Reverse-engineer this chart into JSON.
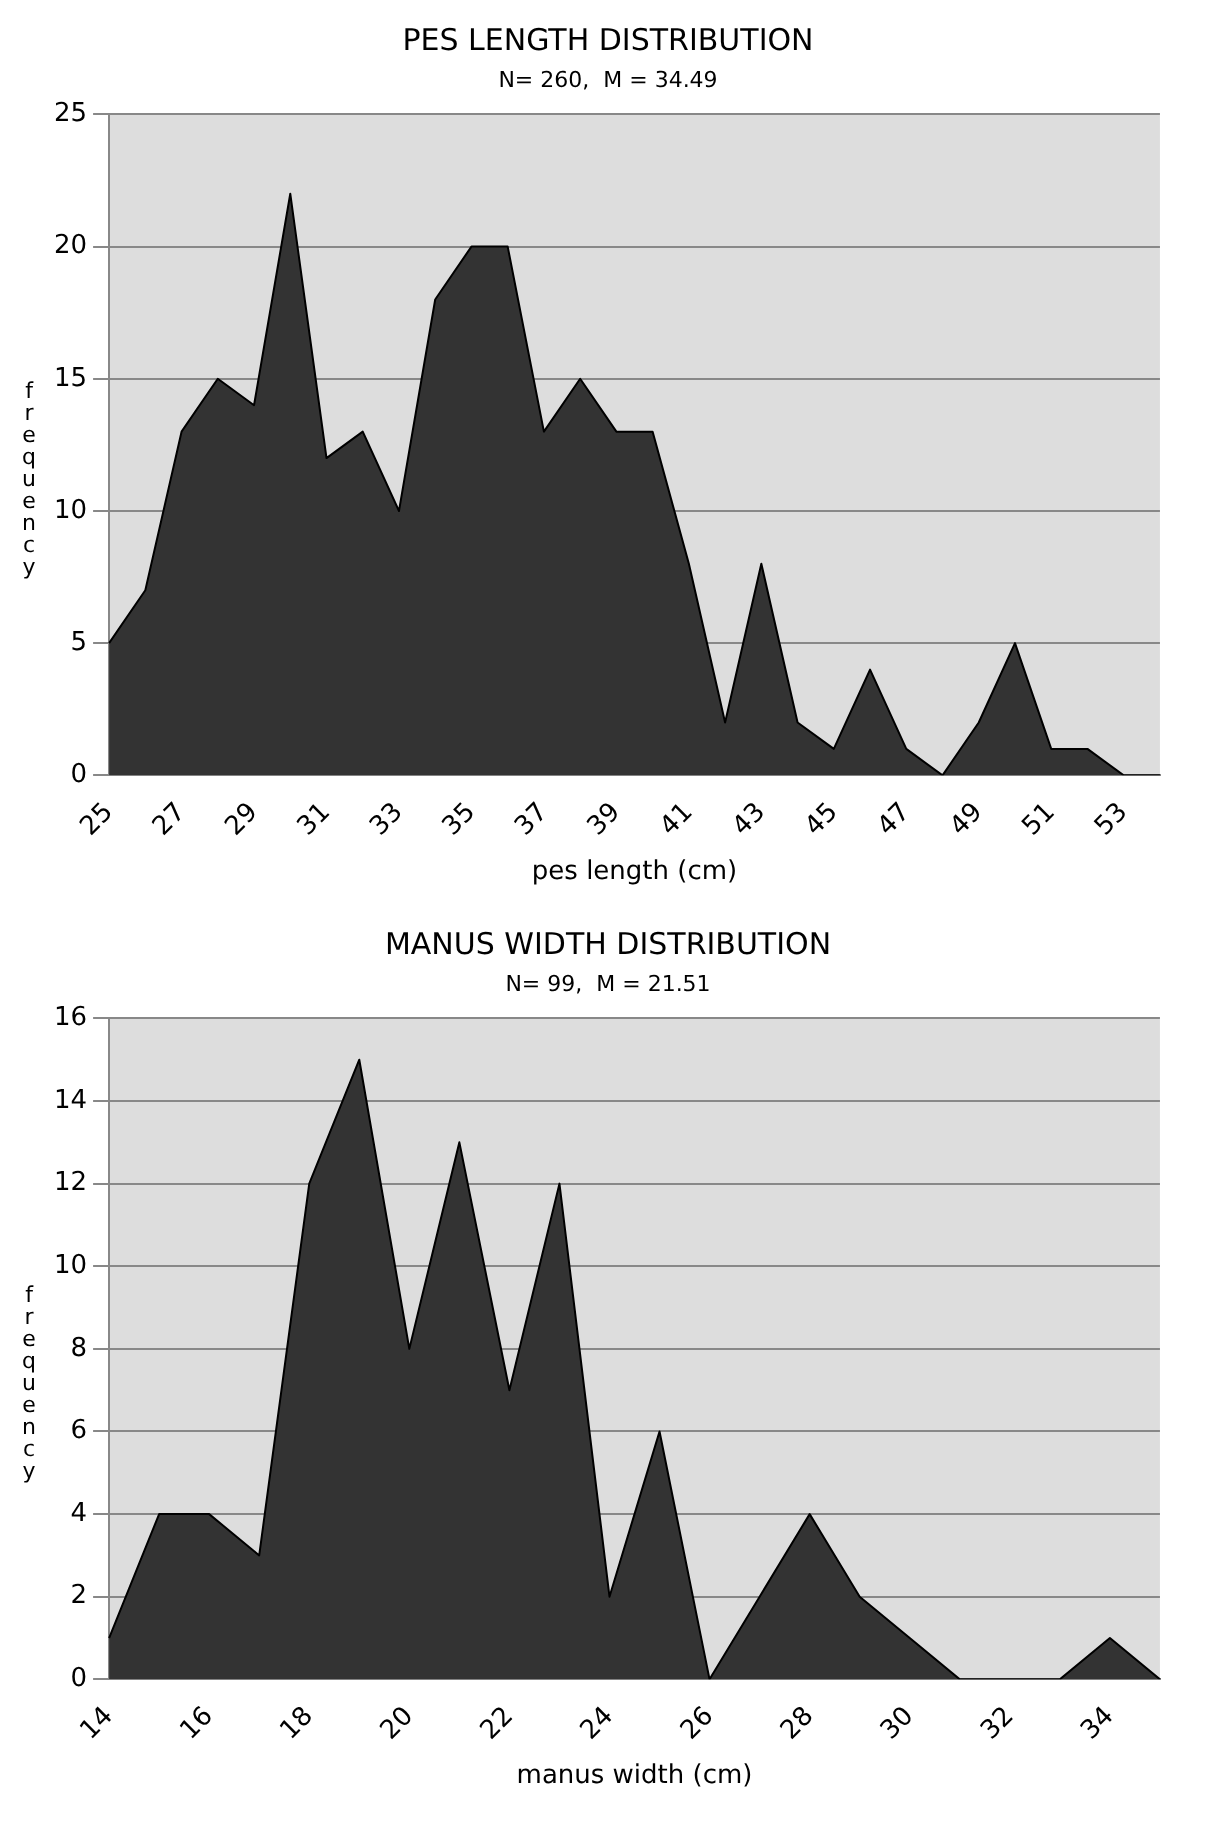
{
  "chart_data": [
    {
      "type": "area",
      "title": "PES LENGTH DISTRIBUTION",
      "subtitle": "N= 260,  M = 34.49",
      "xlabel": "pes length (cm)",
      "ylabel": "frequency",
      "categories": [
        "25",
        null,
        "27",
        null,
        "29",
        null,
        "31",
        null,
        "33",
        null,
        "35",
        null,
        "37",
        null,
        "39",
        null,
        "41",
        null,
        "43",
        null,
        "45",
        null,
        "47",
        null,
        "49",
        null,
        "51",
        null,
        "53",
        null
      ],
      "values": [
        5,
        7,
        13,
        15,
        14,
        22,
        12,
        13,
        10,
        18,
        20,
        20,
        13,
        15,
        13,
        13,
        8,
        2,
        8,
        2,
        1,
        4,
        1,
        0,
        2,
        5,
        1,
        1,
        0,
        0
      ],
      "color": "#333333",
      "ylim": [
        0,
        25
      ],
      "yticks": [
        0,
        5,
        10,
        15,
        20,
        25
      ],
      "grid": "y"
    },
    {
      "type": "area",
      "title": "MANUS WIDTH DISTRIBUTION",
      "subtitle": "N= 99,  M = 21.51",
      "xlabel": "manus width (cm)",
      "ylabel": "frequency",
      "categories": [
        "14",
        null,
        "16",
        null,
        "18",
        null,
        "20",
        null,
        "22",
        null,
        "24",
        null,
        "26",
        null,
        "28",
        null,
        "30",
        null,
        "32",
        null,
        "34",
        null
      ],
      "values": [
        1,
        4,
        4,
        3,
        12,
        15,
        8,
        13,
        7,
        12,
        2,
        6,
        0,
        2,
        4,
        2,
        1,
        0,
        0,
        0,
        1,
        0
      ],
      "color": "#333333",
      "ylim": [
        0,
        16
      ],
      "yticks": [
        0,
        2,
        4,
        6,
        8,
        10,
        12,
        14,
        16
      ],
      "grid": "y"
    }
  ]
}
